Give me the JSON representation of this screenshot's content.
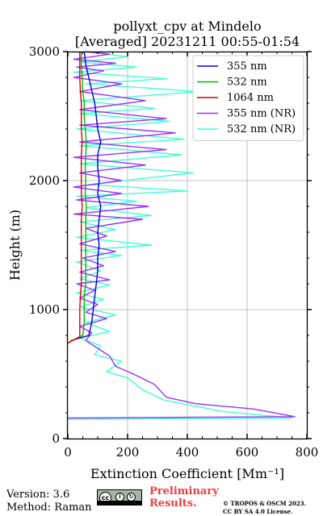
{
  "chart_data": {
    "type": "line",
    "title": "pollyxt_cpv at Mindelo",
    "subtitle": "[Averaged] 20231211 00:55-01:54",
    "xlabel": "Extinction Coefficient [Mm⁻¹]",
    "ylabel": "Height (m)",
    "xlim": [
      0,
      800
    ],
    "ylim": [
      0,
      3000
    ],
    "x_ticks": [
      "0",
      "200",
      "400",
      "600",
      "800"
    ],
    "y_ticks": [
      "0",
      "1000",
      "2000",
      "3000"
    ],
    "grid": true,
    "legend_position": "top-right",
    "series": [
      {
        "name": "355 nm",
        "color": "#0000dd",
        "points": [
          [
            10,
            760
          ],
          [
            70,
            800
          ],
          [
            80,
            900
          ],
          [
            85,
            1000
          ],
          [
            90,
            1100
          ],
          [
            95,
            1200
          ],
          [
            100,
            1300
          ],
          [
            100,
            1400
          ],
          [
            105,
            1500
          ],
          [
            100,
            1600
          ],
          [
            105,
            1700
          ],
          [
            110,
            1800
          ],
          [
            100,
            1900
          ],
          [
            105,
            2000
          ],
          [
            100,
            2100
          ],
          [
            100,
            2200
          ],
          [
            110,
            2300
          ],
          [
            100,
            2400
          ],
          [
            95,
            2500
          ],
          [
            90,
            2600
          ],
          [
            80,
            2700
          ],
          [
            70,
            2800
          ],
          [
            60,
            2900
          ],
          [
            55,
            3000
          ]
        ]
      },
      {
        "name": "532 nm",
        "color": "#00bb00",
        "points": [
          [
            5,
            750
          ],
          [
            50,
            800
          ],
          [
            55,
            900
          ],
          [
            55,
            1000
          ],
          [
            55,
            1100
          ],
          [
            60,
            1200
          ],
          [
            60,
            1300
          ],
          [
            60,
            1400
          ],
          [
            60,
            1500
          ],
          [
            60,
            1600
          ],
          [
            60,
            1700
          ],
          [
            62,
            1800
          ],
          [
            58,
            1900
          ],
          [
            60,
            2000
          ],
          [
            58,
            2100
          ],
          [
            60,
            2200
          ],
          [
            62,
            2300
          ],
          [
            58,
            2400
          ],
          [
            55,
            2500
          ],
          [
            55,
            2600
          ],
          [
            50,
            2700
          ],
          [
            48,
            2800
          ],
          [
            45,
            2900
          ],
          [
            45,
            3000
          ]
        ]
      },
      {
        "name": "1064 nm",
        "color": "#dd0000",
        "points": [
          [
            0,
            740
          ],
          [
            40,
            790
          ],
          [
            40,
            900
          ],
          [
            40,
            1000
          ],
          [
            42,
            1100
          ],
          [
            45,
            1200
          ],
          [
            45,
            1300
          ],
          [
            45,
            1400
          ],
          [
            45,
            1500
          ],
          [
            45,
            1600
          ],
          [
            45,
            1700
          ],
          [
            48,
            1800
          ],
          [
            45,
            1900
          ],
          [
            45,
            2000
          ],
          [
            45,
            2100
          ],
          [
            45,
            2200
          ],
          [
            48,
            2300
          ],
          [
            45,
            2400
          ],
          [
            45,
            2500
          ],
          [
            45,
            2600
          ],
          [
            42,
            2700
          ],
          [
            40,
            2800
          ],
          [
            40,
            2900
          ],
          [
            40,
            3000
          ]
        ]
      },
      {
        "name": "355 nm (NR)",
        "color": "#9b30ff",
        "points": [
          [
            0,
            160
          ],
          [
            760,
            170
          ],
          [
            620,
            230
          ],
          [
            430,
            270
          ],
          [
            330,
            320
          ],
          [
            290,
            420
          ],
          [
            220,
            500
          ],
          [
            160,
            560
          ],
          [
            140,
            640
          ],
          [
            100,
            700
          ],
          [
            60,
            760
          ],
          [
            80,
            820
          ],
          [
            40,
            870
          ],
          [
            130,
            930
          ],
          [
            60,
            980
          ],
          [
            100,
            1040
          ],
          [
            40,
            1090
          ],
          [
            90,
            1150
          ],
          [
            30,
            1200
          ],
          [
            140,
            1230
          ],
          [
            40,
            1290
          ],
          [
            120,
            1340
          ],
          [
            50,
            1400
          ],
          [
            160,
            1450
          ],
          [
            40,
            1510
          ],
          [
            130,
            1570
          ],
          [
            60,
            1630
          ],
          [
            250,
            1700
          ],
          [
            20,
            1740
          ],
          [
            270,
            1800
          ],
          [
            30,
            1850
          ],
          [
            180,
            1900
          ],
          [
            20,
            1950
          ],
          [
            180,
            2000
          ],
          [
            40,
            2060
          ],
          [
            260,
            2120
          ],
          [
            20,
            2180
          ],
          [
            330,
            2240
          ],
          [
            40,
            2300
          ],
          [
            360,
            2370
          ],
          [
            40,
            2430
          ],
          [
            330,
            2480
          ],
          [
            40,
            2550
          ],
          [
            260,
            2620
          ],
          [
            40,
            2690
          ],
          [
            180,
            2750
          ],
          [
            20,
            2800
          ],
          [
            120,
            2850
          ],
          [
            30,
            2880
          ],
          [
            160,
            2910
          ],
          [
            20,
            2940
          ],
          [
            140,
            2980
          ],
          [
            60,
            3000
          ]
        ]
      },
      {
        "name": "532 nm (NR)",
        "color": "#40ffd0",
        "points": [
          [
            0,
            150
          ],
          [
            750,
            160
          ],
          [
            520,
            210
          ],
          [
            320,
            300
          ],
          [
            250,
            380
          ],
          [
            200,
            470
          ],
          [
            130,
            520
          ],
          [
            180,
            600
          ],
          [
            90,
            650
          ],
          [
            110,
            720
          ],
          [
            40,
            780
          ],
          [
            140,
            830
          ],
          [
            60,
            900
          ],
          [
            160,
            960
          ],
          [
            40,
            1020
          ],
          [
            120,
            1080
          ],
          [
            30,
            1130
          ],
          [
            140,
            1190
          ],
          [
            40,
            1240
          ],
          [
            110,
            1300
          ],
          [
            30,
            1370
          ],
          [
            180,
            1420
          ],
          [
            40,
            1460
          ],
          [
            280,
            1500
          ],
          [
            30,
            1560
          ],
          [
            160,
            1620
          ],
          [
            40,
            1680
          ],
          [
            280,
            1730
          ],
          [
            60,
            1790
          ],
          [
            230,
            1840
          ],
          [
            30,
            1880
          ],
          [
            400,
            1920
          ],
          [
            70,
            1970
          ],
          [
            420,
            2060
          ],
          [
            40,
            2130
          ],
          [
            380,
            2200
          ],
          [
            40,
            2270
          ],
          [
            390,
            2320
          ],
          [
            30,
            2400
          ],
          [
            340,
            2460
          ],
          [
            40,
            2520
          ],
          [
            290,
            2560
          ],
          [
            40,
            2620
          ],
          [
            440,
            2690
          ],
          [
            60,
            2750
          ],
          [
            330,
            2790
          ],
          [
            20,
            2840
          ],
          [
            230,
            2880
          ],
          [
            40,
            2920
          ],
          [
            200,
            2960
          ],
          [
            60,
            3000
          ]
        ]
      }
    ]
  },
  "footer": {
    "version": "Version: 3.6",
    "method": "Method: Raman",
    "license_badge": "cc BY SA",
    "preliminary_line1": "Preliminary",
    "preliminary_line2": "Results.",
    "copyright_line1": "© TROPOS & OSCM 2023.",
    "copyright_line2": "CC BY SA 4.0 License."
  }
}
